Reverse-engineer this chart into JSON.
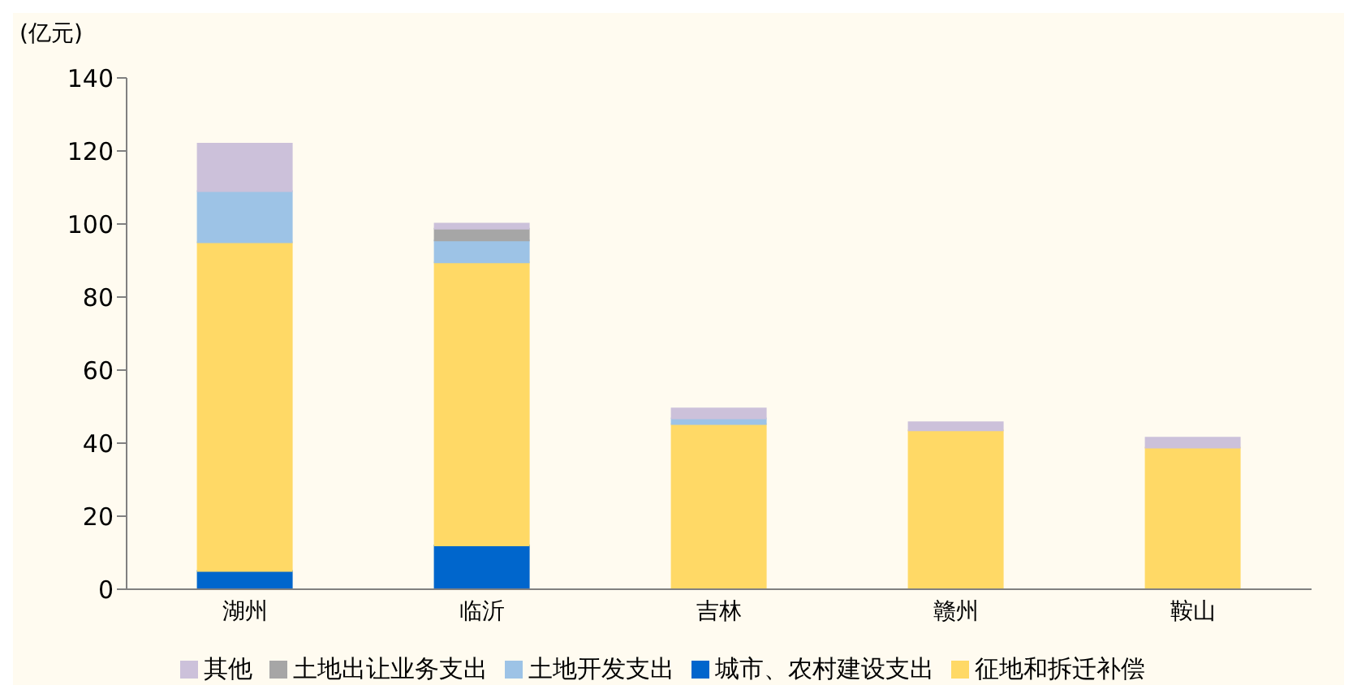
{
  "chart_data": {
    "type": "bar",
    "stacked": true,
    "ylabel": "(亿元)",
    "categories": [
      "湖州",
      "临沂",
      "吉林",
      "赣州",
      "鞍山"
    ],
    "series": [
      {
        "name": "城市、农村建设支出",
        "color": "#0066cc",
        "values": [
          5,
          12,
          0,
          0,
          0
        ]
      },
      {
        "name": "征地和拆迁补偿",
        "color": "#ffd966",
        "values": [
          90,
          77.5,
          45.2,
          43.5,
          38.8
        ]
      },
      {
        "name": "土地开发支出",
        "color": "#9dc3e6",
        "values": [
          14,
          6,
          1.6,
          0,
          0
        ]
      },
      {
        "name": "土地出让业务支出",
        "color": "#a6a6a6",
        "values": [
          0,
          3.2,
          0,
          0,
          0
        ]
      },
      {
        "name": "其他",
        "color": "#ccc1da",
        "values": [
          13,
          1.4,
          2.7,
          2.2,
          2.7
        ]
      }
    ],
    "ylim": [
      0,
      140
    ],
    "yticks": [
      0,
      20,
      40,
      60,
      80,
      100,
      120,
      140
    ],
    "grid": false,
    "legend": "bottom"
  }
}
